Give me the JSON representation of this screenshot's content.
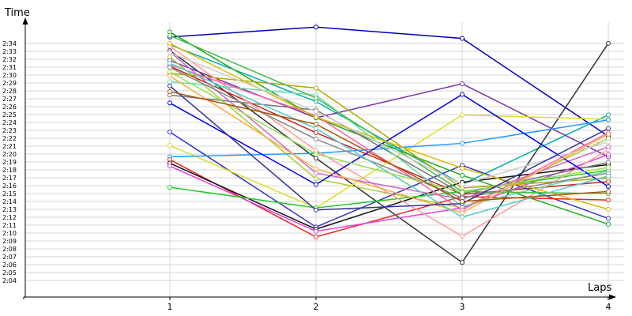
{
  "chart_data": {
    "type": "line",
    "xlabel": "Laps",
    "ylabel": "Time",
    "x": [
      1,
      2,
      3,
      4
    ],
    "x_tick_labels": [
      "1",
      "2",
      "3",
      "4"
    ],
    "y_tick_labels": [
      "2:04",
      "2:05",
      "2:06",
      "2:07",
      "2:08",
      "2:09",
      "2:10",
      "2:11",
      "2:12",
      "2:13",
      "2:14",
      "2:15",
      "2:16",
      "2:17",
      "2:18",
      "2:19",
      "2:20",
      "2:21",
      "2:22",
      "2:23",
      "2:24",
      "2:25",
      "2:26",
      "2:27",
      "2:28",
      "2:29",
      "2:30",
      "2:31",
      "2:32",
      "2:33",
      "2:34"
    ],
    "y_range_seconds": [
      123,
      135
    ],
    "grid": true,
    "legend": "none",
    "series": [
      {
        "color": "#0000aa",
        "values": [
          134.9,
          136.3,
          134.7,
          120.9
        ]
      },
      {
        "color": "#00b0b0",
        "values": [
          133.8,
          125.8,
          114.1,
          123.9
        ]
      },
      {
        "color": "#333333",
        "values": [
          133.0,
          117.8,
          103.1,
          134.0
        ]
      },
      {
        "color": "#7733aa",
        "values": [
          131.6,
          123.5,
          128.3,
          118.0
        ]
      },
      {
        "color": "#aacc33",
        "values": [
          132.1,
          114.9,
          110.8,
          120.6
        ]
      },
      {
        "color": "#cc2222",
        "values": [
          130.8,
          121.4,
          112.7,
          114.5
        ]
      },
      {
        "color": "#3333cc",
        "values": [
          121.5,
          108.1,
          116.8,
          109.3
        ]
      },
      {
        "color": "#dddd22",
        "values": [
          119.6,
          110.8,
          123.9,
          123.3
        ]
      },
      {
        "color": "#2299ff",
        "values": [
          118.0,
          118.5,
          119.9,
          123.2
        ]
      },
      {
        "color": "#ee2222",
        "values": [
          117.6,
          106.7,
          112.4,
          111.9
        ]
      },
      {
        "color": "#111111",
        "values": [
          117.1,
          107.8,
          114.4,
          116.9
        ]
      },
      {
        "color": "#dd44dd",
        "values": [
          116.7,
          107.5,
          110.8,
          118.3
        ]
      },
      {
        "color": "#22cc22",
        "values": [
          113.7,
          110.8,
          113.1,
          116.1
        ]
      },
      {
        "color": "#22aa22",
        "values": [
          135.6,
          123.5,
          115.4,
          108.5
        ]
      },
      {
        "color": "#aaaa00",
        "values": [
          129.8,
          127.7,
          113.6,
          115.0
        ]
      },
      {
        "color": "#777777",
        "values": [
          126.7,
          124.6,
          112.8,
          117.2
        ]
      },
      {
        "color": "#ff9999",
        "values": [
          133.6,
          118.9,
          106.8,
          119.0
        ]
      },
      {
        "color": "#cc66cc",
        "values": [
          132.8,
          115.7,
          112.0,
          119.4
        ]
      },
      {
        "color": "#66ddaa",
        "values": [
          128.6,
          126.7,
          111.0,
          116.0
        ]
      },
      {
        "color": "#0000ee",
        "values": [
          125.6,
          114.1,
          126.8,
          113.8
        ]
      },
      {
        "color": "#ff66aa",
        "values": [
          131.0,
          123.8,
          110.5,
          121.4
        ]
      },
      {
        "color": "#44bb44",
        "values": [
          135.1,
          126.3,
          113.1,
          112.8
        ]
      },
      {
        "color": "#ddbb00",
        "values": [
          134.0,
          123.6,
          116.4,
          110.6
        ]
      },
      {
        "color": "#cccccc",
        "values": [
          132.7,
          124.4,
          114.1,
          120.1
        ]
      },
      {
        "color": "#888888",
        "values": [
          130.6,
          120.5,
          112.2,
          115.7
        ]
      },
      {
        "color": "#ffaa44",
        "values": [
          129.4,
          116.3,
          110.1,
          121.2
        ]
      },
      {
        "color": "#55cccc",
        "values": [
          131.2,
          122.0,
          109.5,
          115.3
        ]
      },
      {
        "color": "#99dd55",
        "values": [
          130.0,
          118.4,
          113.0,
          116.5
        ]
      },
      {
        "color": "#333399",
        "values": [
          128.0,
          110.5,
          111.4,
          122.0
        ]
      },
      {
        "color": "#aa5500",
        "values": [
          127.2,
          122.6,
          111.7,
          113.1
        ]
      }
    ]
  }
}
